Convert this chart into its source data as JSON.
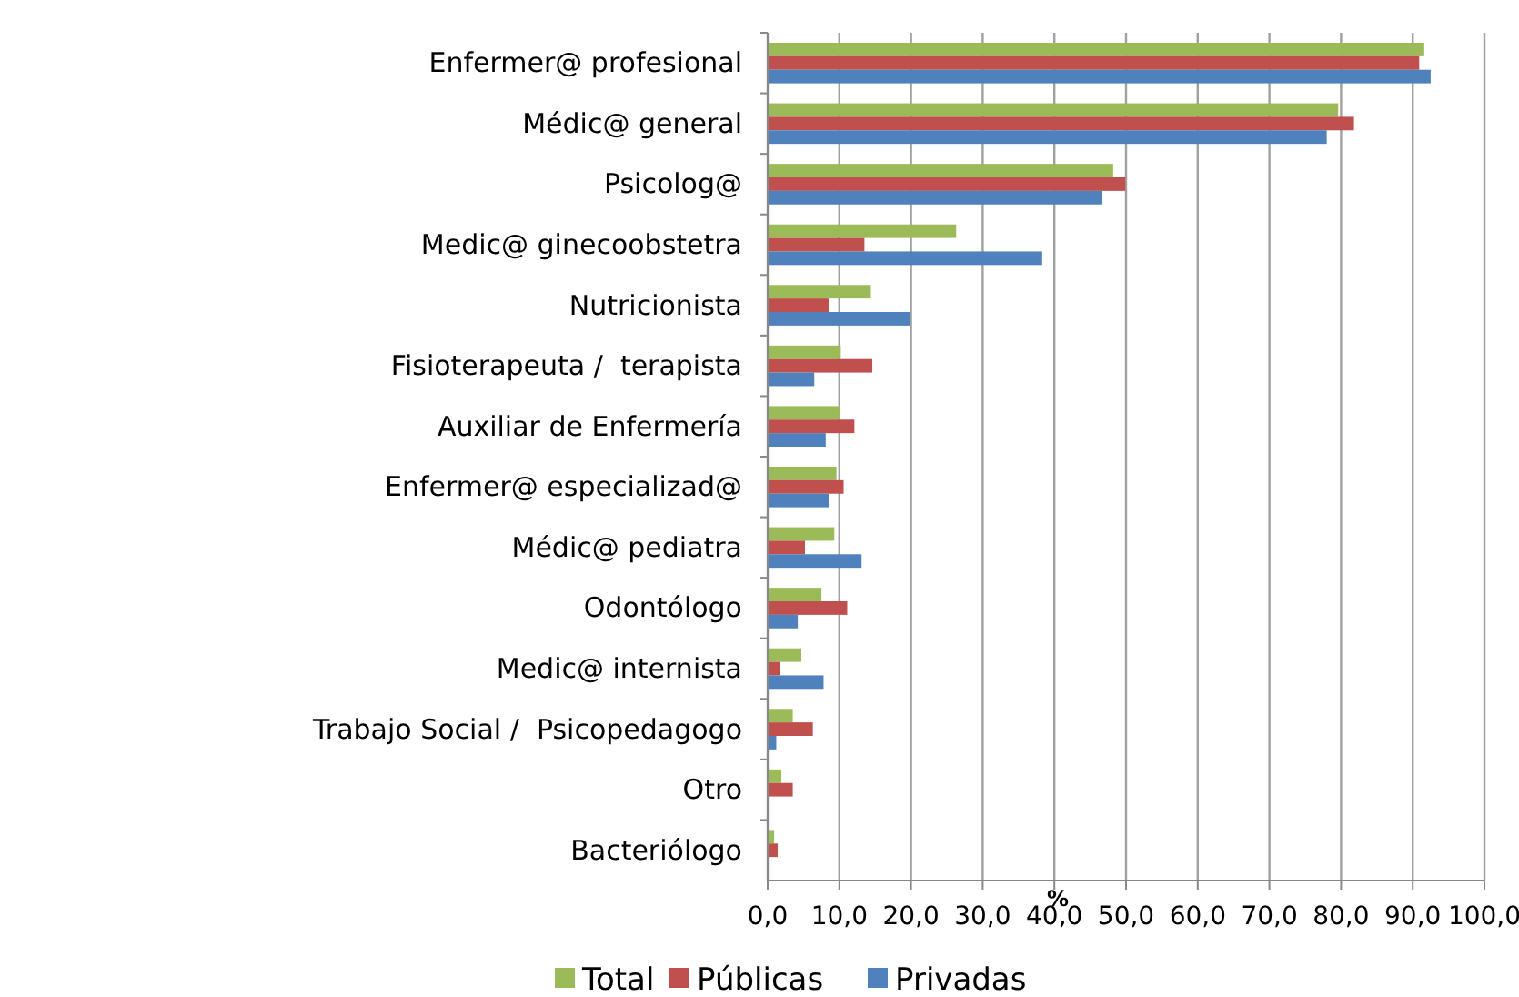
{
  "chart_data": {
    "type": "bar",
    "orientation": "horizontal",
    "xlabel": "%",
    "categories": [
      "Enfermer@ profesional",
      "Médic@ general",
      "Psicolog@",
      "Medic@ ginecoobstetra",
      "Nutricionista",
      "Fisioterapeuta /  terapista",
      "Auxiliar de Enfermería",
      "Enfermer@ especializad@",
      "Médic@ pediatra",
      "Odontólogo",
      "Medic@ internista",
      "Trabajo Social /  Psicopedagogo",
      "Otro",
      "Bacteriólogo"
    ],
    "series": [
      {
        "name": "Total",
        "color": "#9bbb59",
        "values": [
          91.6,
          79.6,
          48.2,
          26.3,
          14.4,
          10.2,
          10.0,
          9.6,
          9.3,
          7.5,
          4.7,
          3.5,
          1.9,
          0.9
        ]
      },
      {
        "name": "Públicas",
        "color": "#c0504d",
        "values": [
          90.9,
          81.8,
          49.9,
          13.5,
          8.5,
          14.6,
          12.1,
          10.6,
          5.2,
          11.1,
          1.7,
          6.3,
          3.5,
          1.4
        ]
      },
      {
        "name": "Privadas",
        "color": "#4f81bd",
        "values": [
          92.5,
          78.0,
          46.7,
          38.3,
          19.9,
          6.5,
          8.1,
          8.5,
          13.1,
          4.2,
          7.8,
          1.2,
          null,
          null
        ]
      }
    ],
    "xlim": [
      0,
      100
    ],
    "xticks": [
      {
        "value": 0,
        "label": "0,0"
      },
      {
        "value": 10,
        "label": "10,0"
      },
      {
        "value": 20,
        "label": "20,0"
      },
      {
        "value": 30,
        "label": "30,0"
      },
      {
        "value": 40,
        "label": "40,0"
      },
      {
        "value": 50,
        "label": "50,0"
      },
      {
        "value": 60,
        "label": "60,0"
      },
      {
        "value": 70,
        "label": "70,0"
      },
      {
        "value": 80,
        "label": "80,0"
      },
      {
        "value": 90,
        "label": "90,0"
      },
      {
        "value": 100,
        "label": "100,0"
      }
    ],
    "grid": "x",
    "legend": "bottom"
  }
}
